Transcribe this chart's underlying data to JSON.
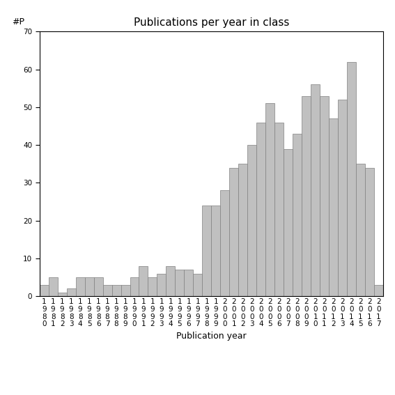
{
  "title": "Publications per year in class",
  "xlabel": "Publication year",
  "ylabel": "#P",
  "ylim": [
    0,
    70
  ],
  "yticks": [
    0,
    10,
    20,
    30,
    40,
    50,
    60,
    70
  ],
  "bar_color": "#c0c0c0",
  "bar_edgecolor": "#808080",
  "years": [
    "1980",
    "1981",
    "1982",
    "1983",
    "1984",
    "1985",
    "1986",
    "1987",
    "1988",
    "1989",
    "1990",
    "1991",
    "1992",
    "1993",
    "1994",
    "1995",
    "1996",
    "1997",
    "1998",
    "1999",
    "2000",
    "2001",
    "2002",
    "2003",
    "2004",
    "2005",
    "2006",
    "2007",
    "2008",
    "2009",
    "2010",
    "2011",
    "2012",
    "2013",
    "2014",
    "2015",
    "2016",
    "2017"
  ],
  "values": [
    3,
    5,
    1,
    2,
    5,
    5,
    5,
    3,
    3,
    3,
    5,
    8,
    5,
    6,
    8,
    7,
    7,
    6,
    24,
    24,
    28,
    34,
    35,
    40,
    46,
    51,
    46,
    39,
    43,
    53,
    56,
    53,
    47,
    52,
    62,
    35,
    34,
    3
  ],
  "background_color": "#ffffff",
  "title_fontsize": 11,
  "label_fontsize": 9,
  "tick_fontsize": 7.5
}
